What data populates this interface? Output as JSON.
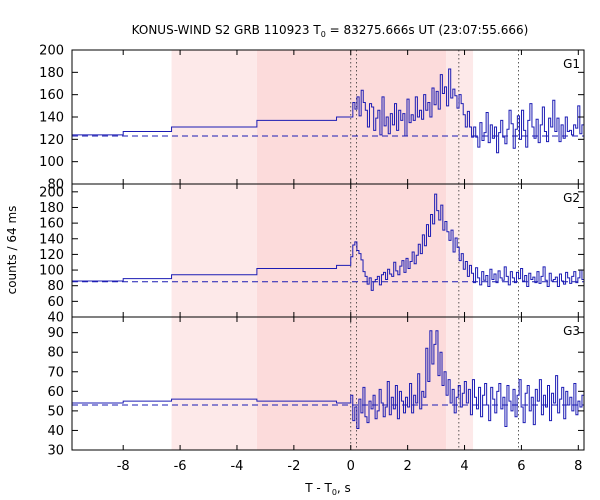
{
  "chart_data": {
    "type": "line",
    "title": {
      "prefix": "KONUS-WIND S2 GRB 110923 T",
      "sub": "0",
      "suffix": " = 83275.666s UT (23:07:55.666)"
    },
    "ylabel": "counts / 64 ms",
    "xlabel": {
      "prefix": "T - T",
      "sub": "0",
      "suffix": ", s"
    },
    "xlim": [
      -9.8,
      8.2
    ],
    "x_ticks": [
      -8,
      -6,
      -4,
      -2,
      0,
      2,
      4,
      6,
      8
    ],
    "x_tick_labels": [
      "-8",
      "-6",
      "-4",
      "-2",
      "0",
      "2",
      "4",
      "6",
      "8"
    ],
    "shaded_intervals": [
      {
        "x0": -6.3,
        "x1": -3.3,
        "color": "#fde9e9"
      },
      {
        "x0": -3.3,
        "x1": 3.35,
        "color": "#fcdbdb"
      },
      {
        "x0": 3.35,
        "x1": 4.3,
        "color": "#fde9e9"
      }
    ],
    "dotted_markers": [
      0.0,
      0.2,
      3.8,
      5.9
    ],
    "panels": [
      {
        "name": "G1",
        "ylim": [
          80,
          200
        ],
        "y_ticks": [
          80,
          100,
          120,
          140,
          160,
          180,
          200
        ],
        "background": 123,
        "steps": [
          [
            -9.8,
            124
          ],
          [
            -8.0,
            127
          ],
          [
            -6.3,
            131
          ],
          [
            -3.3,
            137
          ],
          [
            -0.5,
            140
          ]
        ],
        "burst": [
          140,
          153,
          147,
          158,
          141,
          164,
          153,
          146,
          131,
          152,
          149,
          128,
          139,
          146,
          124,
          158,
          132,
          140,
          125,
          143,
          133,
          152,
          128,
          146,
          137,
          143,
          123,
          156,
          135,
          142,
          137,
          158,
          140,
          146,
          138,
          160,
          146,
          153,
          140,
          166,
          151,
          163,
          147,
          178,
          161,
          167,
          150,
          183,
          157,
          165,
          159,
          148,
          160,
          152,
          142,
          131,
          145,
          131,
          122,
          131,
          122,
          113,
          135,
          119,
          126,
          144,
          117,
          133,
          121,
          131,
          108,
          126,
          137,
          122,
          116,
          129,
          146,
          134,
          112,
          129,
          141,
          120,
          146,
          128,
          113,
          137,
          152,
          131,
          121,
          138,
          117,
          133,
          149,
          127,
          118,
          139,
          131,
          155,
          127,
          139,
          118,
          133,
          121,
          140,
          127,
          128,
          124,
          133,
          130,
          150,
          125,
          133
        ]
      },
      {
        "name": "G2",
        "ylim": [
          40,
          210
        ],
        "y_ticks": [
          40,
          60,
          80,
          100,
          120,
          140,
          160,
          180,
          200
        ],
        "background": 85,
        "steps": [
          [
            -9.8,
            86
          ],
          [
            -8.0,
            89
          ],
          [
            -6.3,
            94
          ],
          [
            -3.3,
            102
          ],
          [
            -0.5,
            106
          ]
        ],
        "burst": [
          117,
          132,
          136,
          125,
          121,
          113,
          98,
          92,
          82,
          90,
          74,
          85,
          88,
          92,
          81,
          94,
          97,
          88,
          101,
          95,
          92,
          110,
          99,
          94,
          105,
          112,
          97,
          115,
          102,
          111,
          123,
          108,
          119,
          133,
          121,
          145,
          131,
          158,
          143,
          171,
          159,
          197,
          176,
          164,
          183,
          151,
          162,
          149,
          138,
          151,
          123,
          141,
          129,
          112,
          121,
          101,
          111,
          92,
          106,
          96,
          84,
          103,
          90,
          81,
          98,
          87,
          93,
          79,
          101,
          88,
          95,
          84,
          99,
          90,
          87,
          104,
          92,
          81,
          98,
          90,
          84,
          97,
          89,
          102,
          86,
          93,
          79,
          96,
          88,
          91,
          84,
          98,
          83,
          92,
          104,
          87,
          79,
          96,
          86,
          88,
          91,
          79,
          95,
          86,
          82,
          97,
          90,
          83,
          92,
          98,
          84,
          90,
          100,
          88
        ]
      },
      {
        "name": "G3",
        "ylim": [
          30,
          98
        ],
        "y_ticks": [
          30,
          40,
          50,
          60,
          70,
          80,
          90
        ],
        "background": 53,
        "steps": [
          [
            -9.8,
            54
          ],
          [
            -8.0,
            55
          ],
          [
            -6.3,
            56
          ],
          [
            -3.3,
            55
          ],
          [
            -0.5,
            54
          ]
        ],
        "burst": [
          58,
          45,
          52,
          41,
          56,
          49,
          62,
          47,
          44,
          55,
          51,
          58,
          46,
          50,
          61,
          54,
          47,
          52,
          65,
          48,
          57,
          51,
          63,
          46,
          60,
          55,
          49,
          57,
          52,
          64,
          49,
          58,
          54,
          69,
          51,
          60,
          57,
          82,
          65,
          91,
          74,
          84,
          91,
          68,
          80,
          63,
          70,
          58,
          66,
          54,
          61,
          49,
          57,
          63,
          52,
          59,
          65,
          54,
          61,
          48,
          66,
          57,
          51,
          62,
          47,
          58,
          64,
          53,
          45,
          62,
          56,
          49,
          60,
          64,
          51,
          57,
          42,
          63,
          55,
          50,
          61,
          47,
          58,
          66,
          52,
          44,
          59,
          63,
          50,
          57,
          43,
          61,
          55,
          66,
          48,
          58,
          52,
          63,
          45,
          59,
          54,
          68,
          49,
          56,
          62,
          46,
          60,
          53,
          57,
          50,
          64,
          48,
          55,
          52,
          58
        ]
      }
    ]
  }
}
